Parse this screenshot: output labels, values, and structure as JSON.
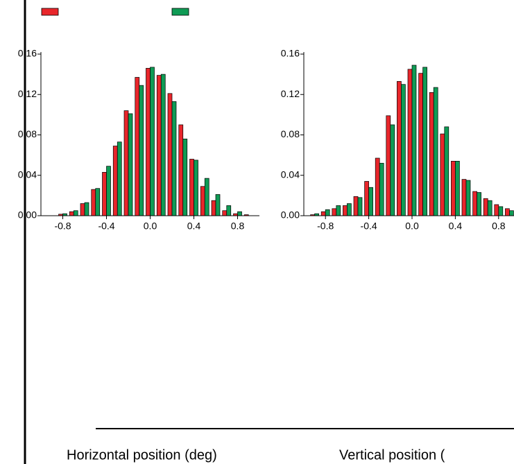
{
  "chart_data": [
    {
      "type": "bar",
      "xlabel": "Horizontal position (deg)",
      "x": [
        -0.9,
        -0.8,
        -0.7,
        -0.6,
        -0.5,
        -0.4,
        -0.3,
        -0.2,
        -0.1,
        0.0,
        0.1,
        0.2,
        0.3,
        0.4,
        0.5,
        0.6,
        0.7,
        0.8,
        0.9
      ],
      "series": [
        {
          "color": "#e8262b",
          "values": [
            0.0,
            0.0015,
            0.004,
            0.012,
            0.026,
            0.043,
            0.069,
            0.104,
            0.137,
            0.146,
            0.139,
            0.121,
            0.09,
            0.056,
            0.029,
            0.015,
            0.005,
            0.002,
            0.001
          ]
        },
        {
          "color": "#0f9b55",
          "values": [
            0.0,
            0.002,
            0.005,
            0.013,
            0.027,
            0.049,
            0.073,
            0.101,
            0.129,
            0.147,
            0.14,
            0.113,
            0.076,
            0.055,
            0.037,
            0.021,
            0.01,
            0.004,
            0.0
          ]
        }
      ],
      "xlim": [
        -1,
        1
      ],
      "xticks": [
        -0.8,
        -0.4,
        {
          "value": 0,
          "label": "0.0"
        },
        0.4,
        0.8
      ],
      "ylim": [
        0,
        0.16
      ],
      "yticks": [
        {
          "value": 0,
          "label": "0.00"
        },
        {
          "value": 0.04,
          "label": "0.04"
        },
        {
          "value": 0.08,
          "label": "0.08"
        },
        {
          "value": 0.12,
          "label": "0.12"
        },
        0.16
      ]
    },
    {
      "type": "bar",
      "xlabel": "Vertical position (",
      "x": [
        -0.9,
        -0.8,
        -0.7,
        -0.6,
        -0.5,
        -0.4,
        -0.3,
        -0.2,
        -0.1,
        0.0,
        0.1,
        0.2,
        0.3,
        0.4,
        0.5,
        0.6,
        0.7,
        0.8,
        0.9
      ],
      "series": [
        {
          "color": "#e8262b",
          "values": [
            0.001,
            0.004,
            0.007,
            0.01,
            0.019,
            0.034,
            0.057,
            0.099,
            0.133,
            0.145,
            0.141,
            0.122,
            0.081,
            0.054,
            0.036,
            0.024,
            0.017,
            0.011,
            0.007
          ]
        },
        {
          "color": "#0f9b55",
          "values": [
            0.002,
            0.006,
            0.01,
            0.012,
            0.018,
            0.028,
            0.052,
            0.09,
            0.13,
            0.149,
            0.147,
            0.127,
            0.088,
            0.054,
            0.035,
            0.023,
            0.015,
            0.009,
            0.005
          ]
        }
      ],
      "xlim": [
        -1,
        1
      ],
      "xticks": [
        -0.8,
        -0.4,
        {
          "value": 0,
          "label": "0.0"
        },
        0.4,
        0.8
      ],
      "ylim": [
        0,
        0.16
      ],
      "yticks": [
        {
          "value": 0,
          "label": "0.00"
        },
        {
          "value": 0.04,
          "label": "0.04"
        },
        {
          "value": 0.08,
          "label": "0.08"
        },
        {
          "value": 0.12,
          "label": "0.12"
        },
        0.16
      ]
    }
  ]
}
